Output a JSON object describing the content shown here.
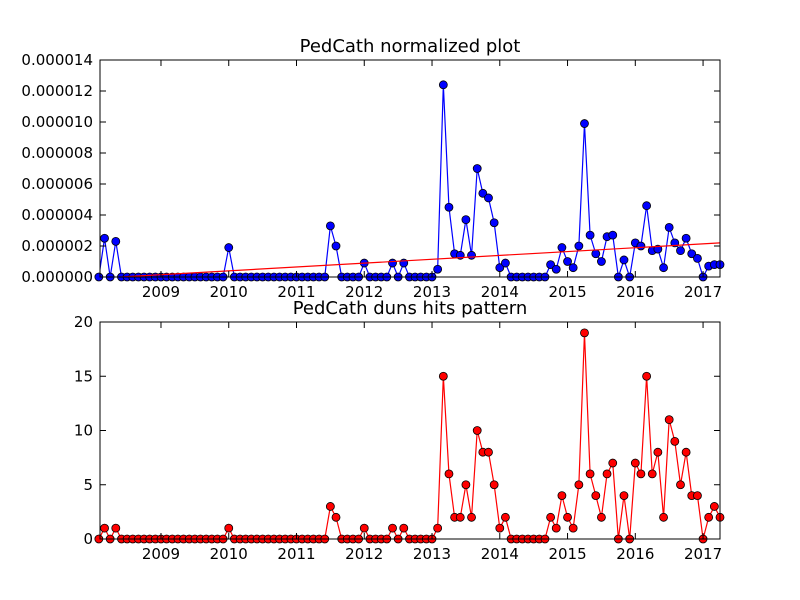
{
  "figure": {
    "background": "#ffffff"
  },
  "chart_data": [
    {
      "type": "line",
      "title": "PedCath normalized plot",
      "xlabel": "",
      "ylabel": "",
      "xlim": [
        2008.1,
        2017.25
      ],
      "ylim": [
        0,
        1.4e-05
      ],
      "x_ticks": [
        2009,
        2010,
        2011,
        2012,
        2013,
        2014,
        2015,
        2016,
        2017
      ],
      "x_tick_labels": [
        "2009",
        "2010",
        "2011",
        "2012",
        "2013",
        "2014",
        "2015",
        "2016",
        "2017"
      ],
      "y_ticks": [
        0,
        2e-06,
        4e-06,
        6e-06,
        8e-06,
        1e-05,
        1.2e-05,
        1.4e-05
      ],
      "y_tick_labels": [
        "0.000000",
        "0.000002",
        "0.000004",
        "0.000006",
        "0.000008",
        "0.000010",
        "0.000012",
        "0.000014"
      ],
      "grid": false,
      "series": [
        {
          "color": "#0000ff",
          "marker_color": "#0000ff",
          "x": [
            2008.083,
            2008.167,
            2008.25,
            2008.333,
            2008.417,
            2008.5,
            2008.583,
            2008.667,
            2008.75,
            2008.833,
            2008.917,
            2009.0,
            2009.083,
            2009.167,
            2009.25,
            2009.333,
            2009.417,
            2009.5,
            2009.583,
            2009.667,
            2009.75,
            2009.833,
            2009.917,
            2010.0,
            2010.083,
            2010.167,
            2010.25,
            2010.333,
            2010.417,
            2010.5,
            2010.583,
            2010.667,
            2010.75,
            2010.833,
            2010.917,
            2011.0,
            2011.083,
            2011.167,
            2011.25,
            2011.333,
            2011.417,
            2011.5,
            2011.583,
            2011.667,
            2011.75,
            2011.833,
            2011.917,
            2012.0,
            2012.083,
            2012.167,
            2012.25,
            2012.333,
            2012.417,
            2012.5,
            2012.583,
            2012.667,
            2012.75,
            2012.833,
            2012.917,
            2013.0,
            2013.083,
            2013.167,
            2013.25,
            2013.333,
            2013.417,
            2013.5,
            2013.583,
            2013.667,
            2013.75,
            2013.833,
            2013.917,
            2014.0,
            2014.083,
            2014.167,
            2014.25,
            2014.333,
            2014.417,
            2014.5,
            2014.583,
            2014.667,
            2014.75,
            2014.833,
            2014.917,
            2015.0,
            2015.083,
            2015.167,
            2015.25,
            2015.333,
            2015.417,
            2015.5,
            2015.583,
            2015.667,
            2015.75,
            2015.833,
            2015.917,
            2016.0,
            2016.083,
            2016.167,
            2016.25,
            2016.333,
            2016.417,
            2016.5,
            2016.583,
            2016.667,
            2016.75,
            2016.833,
            2016.917,
            2017.0,
            2017.083,
            2017.167,
            2017.25
          ],
          "y": [
            0,
            2.5e-06,
            0,
            2.3e-06,
            0,
            0,
            0,
            0,
            0,
            0,
            0,
            0,
            0,
            0,
            0,
            0,
            0,
            0,
            0,
            0,
            0,
            0,
            0,
            1.9e-06,
            0,
            0,
            0,
            0,
            0,
            0,
            0,
            0,
            0,
            0,
            0,
            0,
            0,
            0,
            0,
            0,
            0,
            3.3e-06,
            2e-06,
            0,
            0,
            0,
            0,
            9e-07,
            0,
            0,
            0,
            0,
            9e-07,
            0,
            9e-07,
            0,
            0,
            0,
            0,
            0,
            5e-07,
            1.24e-05,
            4.5e-06,
            1.5e-06,
            1.4e-06,
            3.7e-06,
            1.4e-06,
            7e-06,
            5.4e-06,
            5.1e-06,
            3.5e-06,
            6e-07,
            9e-07,
            0,
            0,
            0,
            0,
            0,
            0,
            0,
            8e-07,
            5e-07,
            1.9e-06,
            1e-06,
            6e-07,
            2e-06,
            9.9e-06,
            2.7e-06,
            1.5e-06,
            1e-06,
            2.6e-06,
            2.7e-06,
            0,
            1.1e-06,
            0,
            2.2e-06,
            2e-06,
            4.6e-06,
            1.7e-06,
            1.8e-06,
            6e-07,
            3.2e-06,
            2.2e-06,
            1.7e-06,
            2.5e-06,
            1.5e-06,
            1.2e-06,
            0,
            7e-07,
            8e-07,
            8e-07
          ]
        },
        {
          "color": "#ff0000",
          "marker_color": "none",
          "x": [
            2008.0,
            2017.25
          ],
          "y": [
            -1e-07,
            2.2e-06
          ]
        }
      ]
    },
    {
      "type": "line",
      "title": "PedCath duns hits pattern",
      "xlabel": "",
      "ylabel": "",
      "xlim": [
        2008.1,
        2017.25
      ],
      "ylim": [
        0,
        20
      ],
      "x_ticks": [
        2009,
        2010,
        2011,
        2012,
        2013,
        2014,
        2015,
        2016,
        2017
      ],
      "x_tick_labels": [
        "2009",
        "2010",
        "2011",
        "2012",
        "2013",
        "2014",
        "2015",
        "2016",
        "2017"
      ],
      "y_ticks": [
        0,
        5,
        10,
        15,
        20
      ],
      "y_tick_labels": [
        "0",
        "5",
        "10",
        "15",
        "20"
      ],
      "grid": false,
      "series": [
        {
          "color": "#ff0000",
          "marker_color": "#ff0000",
          "x": [
            2008.083,
            2008.167,
            2008.25,
            2008.333,
            2008.417,
            2008.5,
            2008.583,
            2008.667,
            2008.75,
            2008.833,
            2008.917,
            2009.0,
            2009.083,
            2009.167,
            2009.25,
            2009.333,
            2009.417,
            2009.5,
            2009.583,
            2009.667,
            2009.75,
            2009.833,
            2009.917,
            2010.0,
            2010.083,
            2010.167,
            2010.25,
            2010.333,
            2010.417,
            2010.5,
            2010.583,
            2010.667,
            2010.75,
            2010.833,
            2010.917,
            2011.0,
            2011.083,
            2011.167,
            2011.25,
            2011.333,
            2011.417,
            2011.5,
            2011.583,
            2011.667,
            2011.75,
            2011.833,
            2011.917,
            2012.0,
            2012.083,
            2012.167,
            2012.25,
            2012.333,
            2012.417,
            2012.5,
            2012.583,
            2012.667,
            2012.75,
            2012.833,
            2012.917,
            2013.0,
            2013.083,
            2013.167,
            2013.25,
            2013.333,
            2013.417,
            2013.5,
            2013.583,
            2013.667,
            2013.75,
            2013.833,
            2013.917,
            2014.0,
            2014.083,
            2014.167,
            2014.25,
            2014.333,
            2014.417,
            2014.5,
            2014.583,
            2014.667,
            2014.75,
            2014.833,
            2014.917,
            2015.0,
            2015.083,
            2015.167,
            2015.25,
            2015.333,
            2015.417,
            2015.5,
            2015.583,
            2015.667,
            2015.75,
            2015.833,
            2015.917,
            2016.0,
            2016.083,
            2016.167,
            2016.25,
            2016.333,
            2016.417,
            2016.5,
            2016.583,
            2016.667,
            2016.75,
            2016.833,
            2016.917,
            2017.0,
            2017.083,
            2017.167,
            2017.25
          ],
          "y": [
            0,
            1,
            0,
            1,
            0,
            0,
            0,
            0,
            0,
            0,
            0,
            0,
            0,
            0,
            0,
            0,
            0,
            0,
            0,
            0,
            0,
            0,
            0,
            1,
            0,
            0,
            0,
            0,
            0,
            0,
            0,
            0,
            0,
            0,
            0,
            0,
            0,
            0,
            0,
            0,
            0,
            3,
            2,
            0,
            0,
            0,
            0,
            1,
            0,
            0,
            0,
            0,
            1,
            0,
            1,
            0,
            0,
            0,
            0,
            0,
            1,
            15,
            6,
            2,
            2,
            5,
            2,
            10,
            8,
            8,
            5,
            1,
            2,
            0,
            0,
            0,
            0,
            0,
            0,
            0,
            2,
            1,
            4,
            2,
            1,
            5,
            19,
            6,
            4,
            2,
            6,
            7,
            0,
            4,
            0,
            7,
            6,
            15,
            6,
            8,
            2,
            11,
            9,
            5,
            8,
            4,
            4,
            0,
            2,
            3,
            2
          ]
        }
      ]
    }
  ]
}
